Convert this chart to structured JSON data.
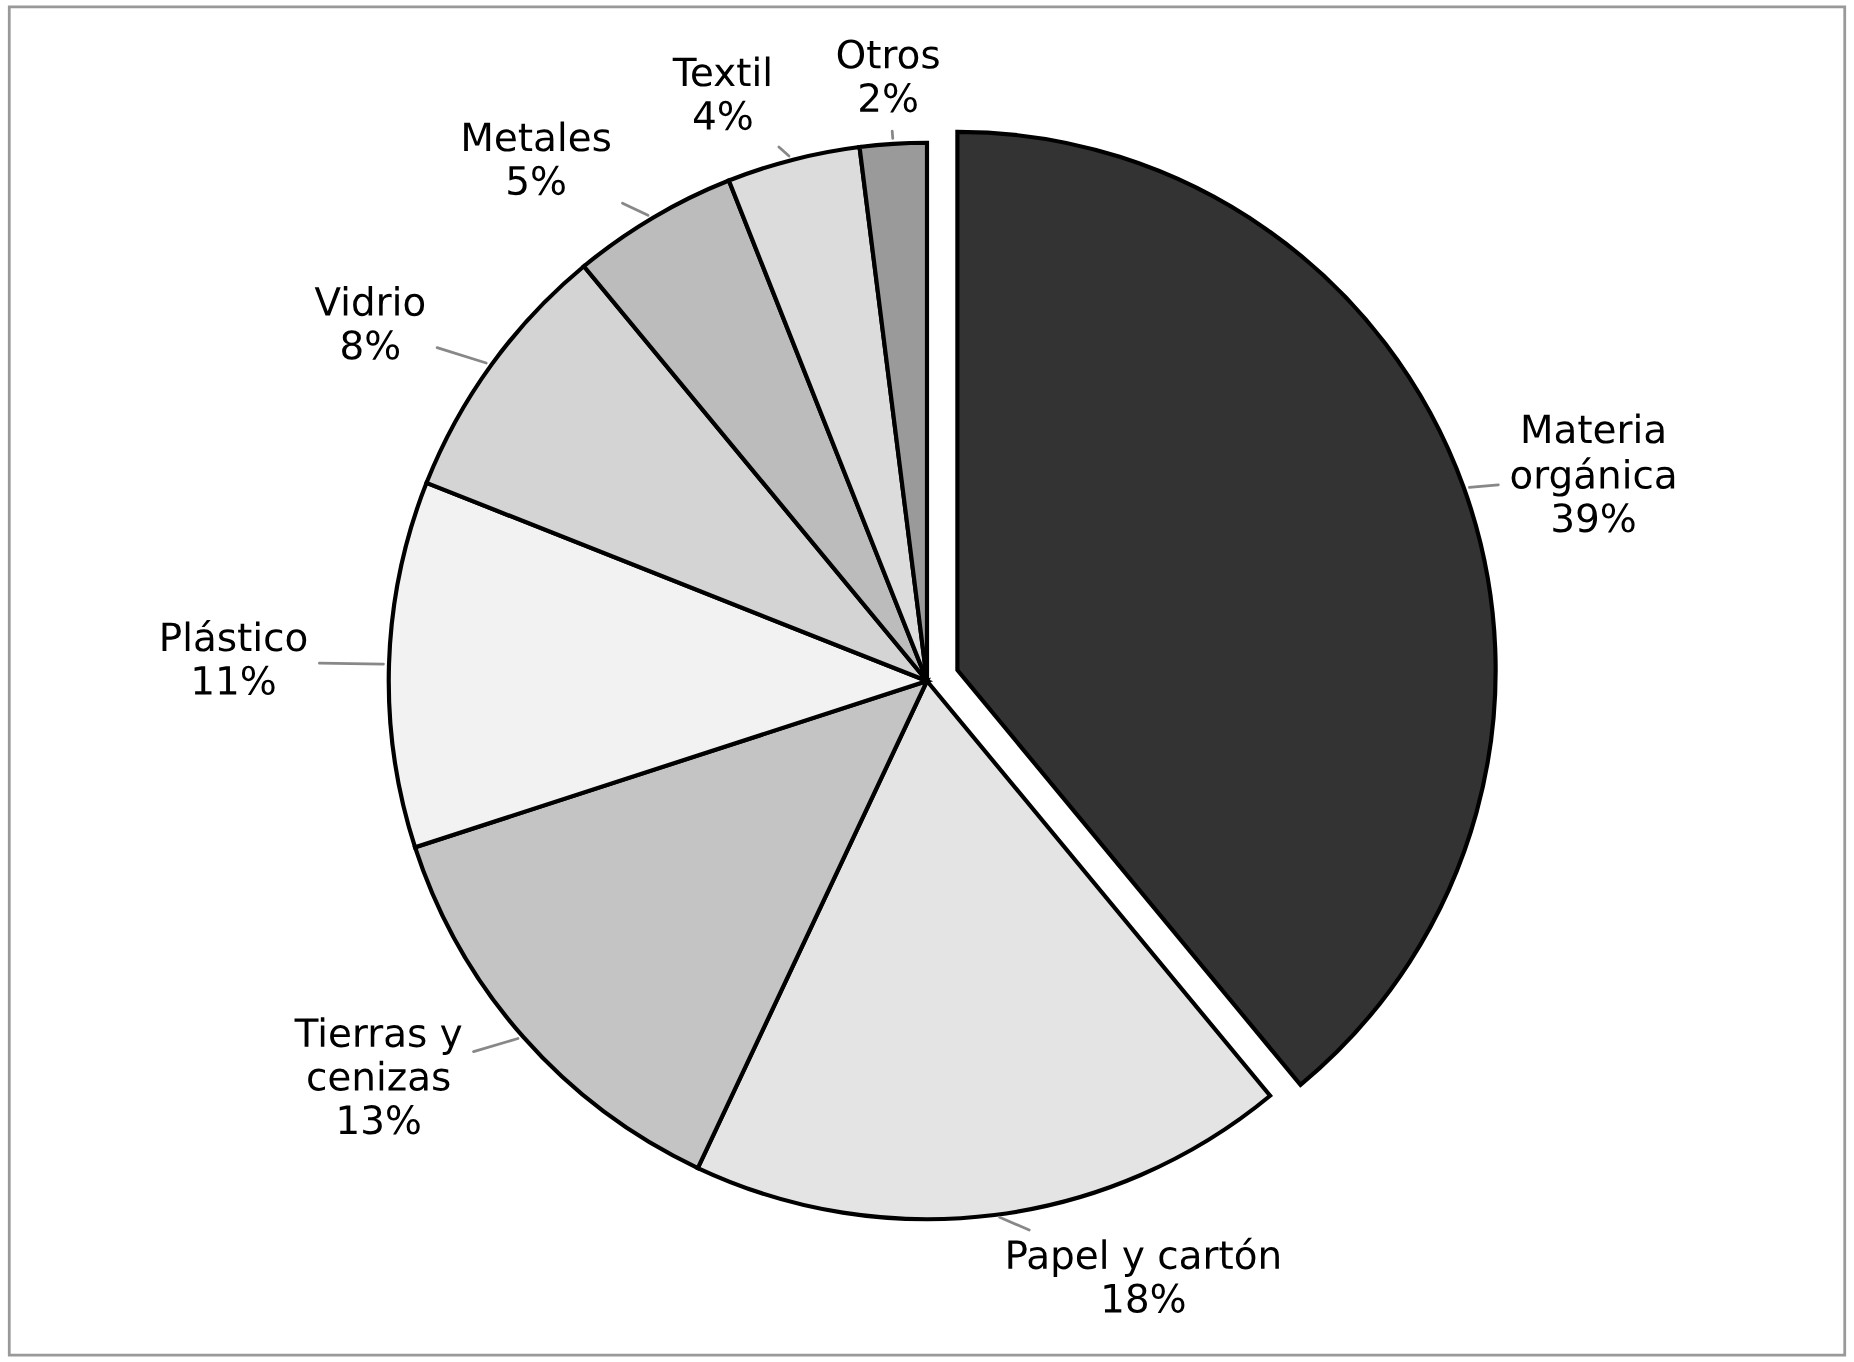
{
  "chart_data": {
    "type": "pie",
    "categories": [
      "Materia\norgánica",
      "Papel y cartón",
      "Tierras y\ncenizas",
      "Plástico",
      "Vidrio",
      "Metales",
      "Textil",
      "Otros"
    ],
    "values": [
      39,
      18,
      13,
      11,
      8,
      5,
      4,
      2
    ],
    "value_labels": [
      "39%",
      "18%",
      "13%",
      "11%",
      "8%",
      "5%",
      "4%",
      "2%"
    ],
    "colors": [
      "#333333",
      "#e4e4e4",
      "#c4c4c4",
      "#f2f2f2",
      "#d4d4d4",
      "#bcbcbc",
      "#dcdcdc",
      "#9a9a9a"
    ],
    "legend": false
  }
}
